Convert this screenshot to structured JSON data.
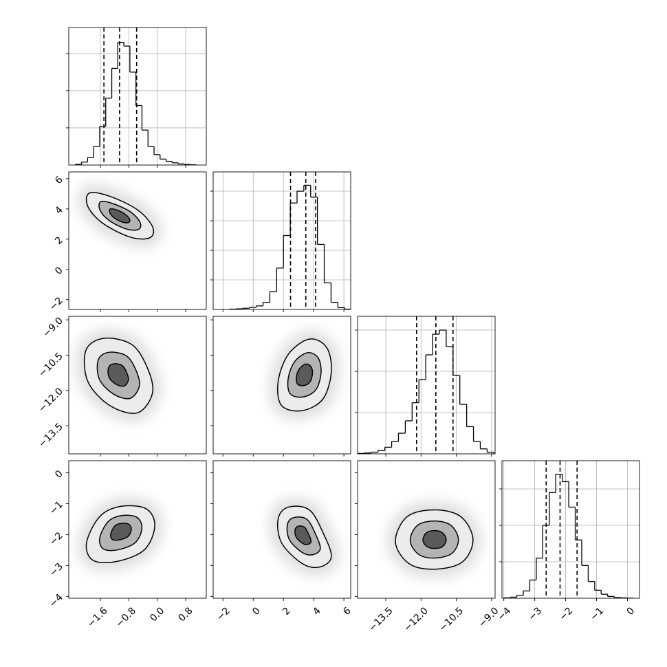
{
  "chart_data": {
    "type": "corner",
    "color": "#000000",
    "grid": true,
    "contour_colors": [
      "#ececec",
      "#b4b4b4",
      "#5a5a5a"
    ],
    "parameters": [
      {
        "lim": [
          -2.49,
          1.38
        ],
        "ticks": [
          {
            "value": -1.6,
            "label": "−1.6"
          },
          {
            "value": -0.8,
            "label": "−0.8"
          },
          {
            "value": 0,
            "label": "0.0"
          },
          0.8
        ],
        "quantiles": [
          -1.5,
          -1.06,
          -0.58
        ],
        "hist": {
          "bins": [
            -2.3,
            -2.13,
            -1.96,
            -1.79,
            -1.62,
            -1.45,
            -1.28,
            -1.11,
            -0.94,
            -0.77,
            -0.6,
            -0.43,
            -0.26,
            -0.09,
            0.08,
            0.25,
            0.42,
            0.59,
            0.76,
            0.93,
            1.1
          ],
          "counts": [
            10,
            40,
            100,
            250,
            520,
            900,
            1300,
            1650,
            1600,
            1250,
            800,
            470,
            250,
            140,
            80,
            50,
            30,
            15,
            8,
            3
          ],
          "ylim": [
            0,
            1850
          ],
          "yticks": [
            500,
            1000,
            1500
          ]
        }
      },
      {
        "lim": [
          -2.65,
          6.45
        ],
        "ticks": [
          {
            "value": -2,
            "label": "−2"
          },
          0,
          2,
          4,
          6
        ],
        "quantiles": [
          2.47,
          3.48,
          4.13
        ],
        "hist": {
          "bins": [
            -1.6,
            -1.15,
            -0.7,
            -0.25,
            0.2,
            0.65,
            1.1,
            1.55,
            2.0,
            2.45,
            2.9,
            3.35,
            3.8,
            4.25,
            4.7,
            5.15,
            5.6,
            6.05,
            6.5
          ],
          "counts": [
            5,
            10,
            20,
            35,
            60,
            120,
            300,
            700,
            1250,
            1800,
            2000,
            2100,
            1900,
            1100,
            450,
            120,
            30,
            5
          ],
          "ylim": [
            0,
            2326
          ],
          "yticks": [
            500,
            1000,
            1500,
            2000
          ]
        }
      },
      {
        "lim": [
          -14.7,
          -8.85
        ],
        "ticks": [
          {
            "value": -13.5,
            "label": "−13.5"
          },
          {
            "value": -12,
            "label": "−12.0"
          },
          {
            "value": -10.5,
            "label": "−10.5"
          },
          {
            "value": -9,
            "label": "−9.0"
          }
        ],
        "quantiles": [
          -12.19,
          -11.37,
          -10.64
        ],
        "hist": {
          "bins": [
            -14.7,
            -14.41,
            -14.12,
            -13.83,
            -13.54,
            -13.25,
            -12.96,
            -12.67,
            -12.38,
            -12.09,
            -11.8,
            -11.51,
            -11.22,
            -10.93,
            -10.64,
            -10.35,
            -10.06,
            -9.77,
            -9.48,
            -9.19,
            -8.9
          ],
          "counts": [
            5,
            10,
            20,
            40,
            80,
            150,
            250,
            400,
            620,
            900,
            1200,
            1450,
            1500,
            1300,
            950,
            600,
            330,
            150,
            60,
            20
          ],
          "ylim": [
            0,
            1667
          ],
          "yticks": [
            500,
            1000,
            1500
          ]
        }
      },
      {
        "lim": [
          -4.06,
          0.39
        ],
        "ticks": [
          {
            "value": -4,
            "label": "−4"
          },
          {
            "value": -3,
            "label": "−3"
          },
          {
            "value": -2,
            "label": "−2"
          },
          {
            "value": -1,
            "label": "−1"
          },
          0
        ],
        "quantiles": [
          -2.63,
          -2.18,
          -1.63
        ],
        "hist": {
          "bins": [
            -4.0,
            -3.79,
            -3.58,
            -3.37,
            -3.16,
            -2.95,
            -2.74,
            -2.53,
            -2.32,
            -2.11,
            -1.9,
            -1.69,
            -1.48,
            -1.27,
            -1.06,
            -0.85,
            -0.64,
            -0.43,
            -0.22,
            -0.01,
            0.2
          ],
          "counts": [
            5,
            15,
            40,
            100,
            250,
            550,
            1000,
            1450,
            1700,
            1600,
            1250,
            800,
            450,
            230,
            110,
            55,
            25,
            10,
            5,
            2
          ],
          "ylim": [
            0,
            1887
          ],
          "yticks": [
            500,
            1000,
            1500
          ]
        }
      }
    ],
    "pairs": [
      {
        "contours": [
          {
            "x": [
              -1.91,
              -1.33,
              -0.55,
              -0.13,
              -0.21,
              -0.75,
              -1.52,
              -1.95
            ],
            "y": [
              5.05,
              4.83,
              3.93,
              2.81,
              2.09,
              2.13,
              3.03,
              4.15
            ]
          },
          {
            "x": [
              -1.59,
              -1.23,
              -0.74,
              -0.48,
              -0.53,
              -0.87,
              -1.35,
              -1.61
            ],
            "y": [
              4.48,
              4.34,
              3.79,
              3.09,
              2.64,
              2.67,
              3.23,
              3.92
            ]
          },
          {
            "x": [
              -1.32,
              -1.14,
              -0.91,
              -0.78,
              -0.8,
              -0.97,
              -1.2,
              -1.33
            ],
            "y": [
              4.0,
              3.93,
              3.66,
              3.33,
              3.11,
              3.12,
              3.39,
              3.73
            ]
          }
        ]
      },
      {
        "contours": [
          {
            "x": [
              -1.52,
              -0.75,
              -0.32,
              -0.13,
              -0.55,
              -1.33,
              -1.95,
              -2.01
            ],
            "y": [
              -9.79,
              -10.02,
              -10.9,
              -12.07,
              -12.95,
              -12.65,
              -11.63,
              -10.31
            ]
          },
          {
            "x": [
              -1.36,
              -0.88,
              -0.62,
              -0.5,
              -0.76,
              -1.24,
              -1.63,
              -1.66
            ],
            "y": [
              -10.38,
              -10.52,
              -11.07,
              -11.79,
              -12.34,
              -12.15,
              -11.52,
              -10.7
            ]
          },
          {
            "x": [
              -1.23,
              -0.99,
              -0.87,
              -0.81,
              -0.94,
              -1.17,
              -1.36,
              -1.37
            ],
            "y": [
              -10.87,
              -10.94,
              -11.21,
              -11.56,
              -11.82,
              -11.73,
              -11.43,
              -11.03
            ]
          }
        ]
      },
      {
        "contours": [
          {
            "x": [
              3.71,
              4.85,
              5.17,
              4.62,
              3.25,
              1.88,
              1.65,
              2.33
            ],
            "y": [
              -9.82,
              -10.17,
              -11.19,
              -12.36,
              -12.86,
              -12.65,
              -11.63,
              -10.46
            ]
          },
          {
            "x": [
              3.58,
              4.29,
              4.49,
              4.15,
              3.3,
              2.45,
              2.31,
              2.73
            ],
            "y": [
              -10.4,
              -10.61,
              -11.25,
              -11.97,
              -12.28,
              -12.15,
              -11.52,
              -10.79
            ]
          },
          {
            "x": [
              3.48,
              3.82,
              3.92,
              3.75,
              3.34,
              2.93,
              2.86,
              3.06
            ],
            "y": [
              -10.88,
              -10.99,
              -11.29,
              -11.65,
              -11.8,
              -11.73,
              -11.43,
              -11.08
            ]
          }
        ]
      },
      {
        "contours": [
          {
            "x": [
              -1.04,
              -0.32,
              -0.07,
              -0.36,
              -1.14,
              -1.81,
              -1.99,
              -1.62
            ],
            "y": [
              -1.09,
              -1.16,
              -1.71,
              -2.49,
              -2.87,
              -2.83,
              -2.27,
              -1.42
            ]
          },
          {
            "x": [
              -1.03,
              -0.59,
              -0.43,
              -0.61,
              -1.09,
              -1.51,
              -1.62,
              -1.39
            ],
            "y": [
              -1.39,
              -1.43,
              -1.77,
              -2.25,
              -2.49,
              -2.47,
              -2.12,
              -1.59
            ]
          },
          {
            "x": [
              -1.03,
              -0.81,
              -0.73,
              -0.82,
              -1.06,
              -1.26,
              -1.31,
              -1.2
            ],
            "y": [
              -1.64,
              -1.66,
              -1.82,
              -2.06,
              -2.17,
              -2.16,
              -1.99,
              -1.73
            ]
          }
        ]
      },
      {
        "contours": [
          {
            "x": [
              2.33,
              3.71,
              4.62,
              5.17,
              4.39,
              3.25,
              1.88,
              1.65
            ],
            "y": [
              -1.11,
              -1.2,
              -1.94,
              -2.72,
              -3.05,
              -2.94,
              -2.27,
              -1.49
            ]
          },
          {
            "x": [
              2.68,
              3.54,
              4.1,
              4.44,
              3.96,
              3.25,
              2.4,
              2.26
            ],
            "y": [
              -1.45,
              -1.5,
              -1.96,
              -2.45,
              -2.65,
              -2.58,
              -2.17,
              -1.68
            ]
          },
          {
            "x": [
              2.97,
              3.39,
              3.66,
              3.83,
              3.59,
              3.25,
              2.84,
              2.77
            ],
            "y": [
              -1.73,
              -1.76,
              -1.98,
              -2.22,
              -2.32,
              -2.28,
              -2.08,
              -1.85
            ]
          }
        ]
      },
      {
        "contours": [
          {
            "x": [
              -11.42,
              -10.31,
              -9.79,
              -10.25,
              -11.42,
              -12.51,
              -13.09,
              -12.59
            ],
            "y": [
              -1.2,
              -1.42,
              -2.16,
              -2.89,
              -3.12,
              -2.94,
              -2.23,
              -1.42
            ]
          },
          {
            "x": [
              -11.42,
              -10.73,
              -10.41,
              -10.69,
              -11.42,
              -12.1,
              -12.46,
              -12.15
            ],
            "y": [
              -1.56,
              -1.7,
              -2.16,
              -2.61,
              -2.76,
              -2.64,
              -2.2,
              -1.7
            ]
          },
          {
            "x": [
              -11.42,
              -11.09,
              -10.93,
              -11.07,
              -11.42,
              -11.75,
              -11.92,
              -11.77
            ],
            "y": [
              -1.87,
              -1.94,
              -2.16,
              -2.38,
              -2.45,
              -2.39,
              -2.18,
              -1.94
            ]
          }
        ]
      }
    ]
  }
}
